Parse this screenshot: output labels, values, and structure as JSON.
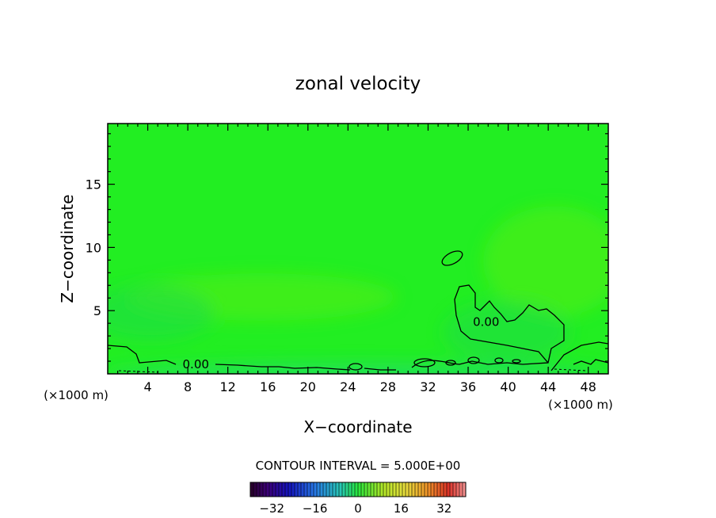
{
  "chart_data": {
    "type": "heatmap",
    "title": "zonal velocity",
    "xlabel": "X−coordinate",
    "ylabel": "Z−coordinate",
    "x_unit_left": "(×1000 m)",
    "x_unit_right": "(×1000 m)",
    "xlim": [
      0,
      50
    ],
    "ylim": [
      0,
      19.8
    ],
    "x_ticks": [
      4,
      8,
      12,
      16,
      20,
      24,
      28,
      32,
      36,
      40,
      44,
      48
    ],
    "x_tick_labels": [
      "4",
      "8",
      "12",
      "16",
      "20",
      "24",
      "28",
      "32",
      "36",
      "40",
      "44",
      "48"
    ],
    "y_ticks": [
      5,
      10,
      15
    ],
    "y_tick_labels": [
      "5",
      "10",
      "15"
    ],
    "contour_labels": [
      {
        "text": "0.00",
        "x": 8.8,
        "y": 0.75
      },
      {
        "text": "0.00",
        "x": 37.8,
        "y": 4.1
      }
    ],
    "contour_interval_text": "CONTOUR INTERVAL = 5.000E+00",
    "colorbar": {
      "range": [
        -40,
        40
      ],
      "ticks": [
        -32,
        -16,
        0,
        16,
        32
      ],
      "tick_labels": [
        "−32",
        "−16",
        "0",
        "16",
        "32"
      ]
    },
    "colors": {
      "field_base": "#22ee22",
      "field_weak_positive": "#55ee11",
      "field_weak_negative": "#22dd44",
      "field_negative": "#22dd66"
    },
    "dominant_value": 0,
    "contour_level": 0
  }
}
